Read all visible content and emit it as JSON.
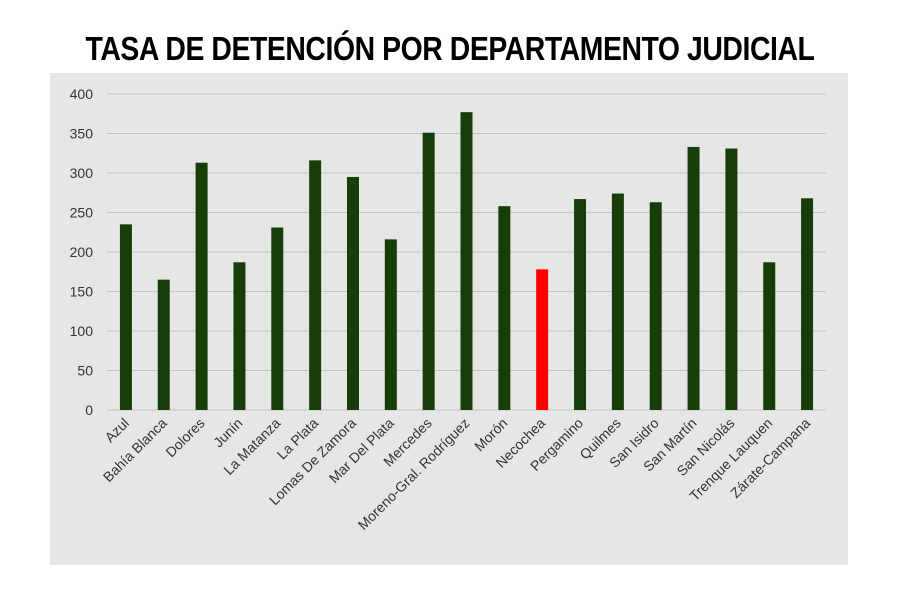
{
  "chart_data": {
    "type": "bar",
    "title": "TASA DE DETENCIÓN POR DEPARTAMENTO JUDICIAL",
    "xlabel": "",
    "ylabel": "",
    "ylim": [
      0,
      400
    ],
    "yticks": [
      0,
      50,
      100,
      150,
      200,
      250,
      300,
      350,
      400
    ],
    "grid": true,
    "categories": [
      "Azul",
      "Bahía Blanca",
      "Dolores",
      "Junín",
      "La Matanza",
      "La Plata",
      "Lomas De Zamora",
      "Mar Del Plata",
      "Mercedes",
      "Moreno-Gral. Rodríguez",
      "Morón",
      "Necochea",
      "Pergamino",
      "Quilmes",
      "San Isidro",
      "San Martín",
      "San Nicolás",
      "Trenque Lauquen",
      "Zárate-Campana"
    ],
    "values": [
      235,
      165,
      313,
      187,
      231,
      316,
      295,
      216,
      351,
      377,
      258,
      178,
      267,
      274,
      263,
      333,
      331,
      187,
      268
    ],
    "colors": {
      "bar": "#173d08",
      "highlight": "#ff0000",
      "highlight_category": "Necochea",
      "background": "#e6e6e6",
      "grid": "#c4c4c4"
    }
  }
}
